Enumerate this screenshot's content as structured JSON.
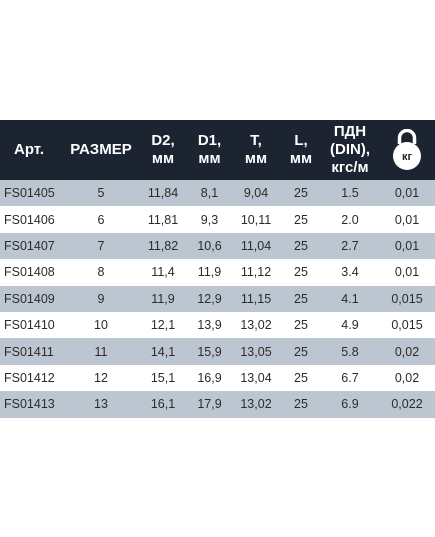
{
  "table": {
    "headers": {
      "art": "Арт.",
      "size": "РАЗМЕР",
      "d2": [
        "D2,",
        "мм"
      ],
      "d1": [
        "D1,",
        "мм"
      ],
      "t": [
        "T,",
        "мм"
      ],
      "l": [
        "L,",
        "мм"
      ],
      "pdn": [
        "ПДН",
        "(DIN),",
        "кгс/м"
      ],
      "weight_icon_label": "кг"
    },
    "rows": [
      [
        "FS01405",
        "5",
        "11,84",
        "8,1",
        "9,04",
        "25",
        "1.5",
        "0,01"
      ],
      [
        "FS01406",
        "6",
        "11,81",
        "9,3",
        "10,11",
        "25",
        "2.0",
        "0,01"
      ],
      [
        "FS01407",
        "7",
        "11,82",
        "10,6",
        "11,04",
        "25",
        "2.7",
        "0,01"
      ],
      [
        "FS01408",
        "8",
        "11,4",
        "11,9",
        "11,12",
        "25",
        "3.4",
        "0,01"
      ],
      [
        "FS01409",
        "9",
        "11,9",
        "12,9",
        "11,15",
        "25",
        "4.1",
        "0,015"
      ],
      [
        "FS01410",
        "10",
        "12,1",
        "13,9",
        "13,02",
        "25",
        "4.9",
        "0,015"
      ],
      [
        "FS01411",
        "11",
        "14,1",
        "15,9",
        "13,05",
        "25",
        "5.8",
        "0,02"
      ],
      [
        "FS01412",
        "12",
        "15,1",
        "16,9",
        "13,04",
        "25",
        "6.7",
        "0,02"
      ],
      [
        "FS01413",
        "13",
        "16,1",
        "17,9",
        "13,02",
        "25",
        "6.9",
        "0,022"
      ]
    ],
    "colors": {
      "header_bg": "#1b2430",
      "row_alt_bg": "#bcc6d1",
      "row_bg": "#ffffff"
    },
    "icons": {
      "weight": "kettlebell-icon"
    }
  }
}
